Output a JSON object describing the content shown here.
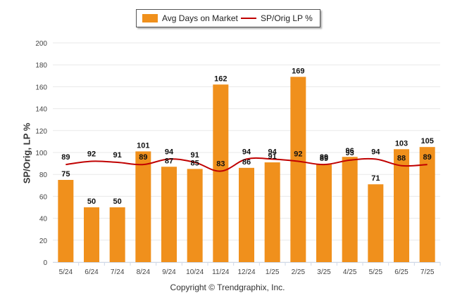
{
  "chart_data": {
    "type": "bar",
    "categories": [
      "5/24",
      "6/24",
      "7/24",
      "8/24",
      "9/24",
      "10/24",
      "11/24",
      "12/24",
      "1/25",
      "2/25",
      "3/25",
      "4/25",
      "5/25",
      "6/25",
      "7/25"
    ],
    "series": [
      {
        "name": "Avg Days on Market",
        "type": "bar",
        "values": [
          75,
          50,
          50,
          101,
          87,
          85,
          162,
          86,
          91,
          169,
          89,
          96,
          71,
          103,
          105
        ]
      },
      {
        "name": "SP/Orig LP %",
        "type": "line",
        "values": [
          89,
          92,
          91,
          89,
          94,
          91,
          83,
          94,
          94,
          92,
          89,
          93,
          94,
          88,
          89
        ]
      }
    ],
    "ylabel": "SP/Orig, LP %",
    "ylim": [
      0,
      200
    ],
    "yticks": [
      0,
      20,
      40,
      60,
      80,
      100,
      120,
      140,
      160,
      180,
      200
    ],
    "grid": true,
    "legend_position": "top-center"
  },
  "colors": {
    "bar": "#F0901C",
    "line": "#C00000",
    "grid": "#e8e8e8",
    "axis": "#cfd8e8"
  },
  "footer": {
    "copyright": "Copyright © Trendgraphix, Inc."
  }
}
